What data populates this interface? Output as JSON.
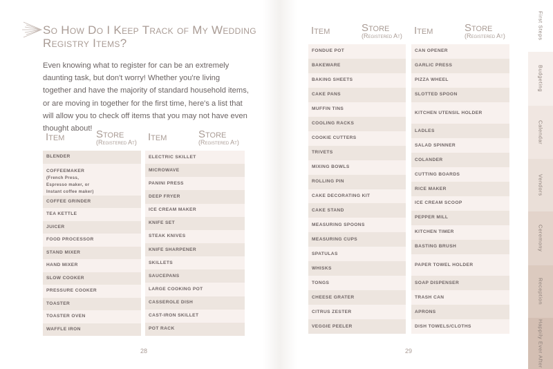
{
  "left_page": {
    "title": "So How Do I Keep Track of My Wedding Registry Items?",
    "intro": "Even knowing what to register for can be an extremely daunting task, but don't worry! Whether you're living together and have the majority of standard household items, or are moving in together for the first time, here's a list that will allow you to check off items that you may not have even thought about!",
    "page_number": "28"
  },
  "right_page": {
    "page_number": "29"
  },
  "table_header": {
    "item": "Item",
    "store": "Store",
    "store_sub": "(Registered At)"
  },
  "lists": [
    {
      "first_shade": "a",
      "items": [
        {
          "t": "Blender"
        },
        {
          "t": "Coffeemaker",
          "n": " (French Press, Espresso maker, or Instant coffee maker)",
          "h": 2.1
        },
        {
          "t": "Coffee grinder"
        },
        {
          "t": "Tea kettle"
        },
        {
          "t": "Juicer"
        },
        {
          "t": "Food processor"
        },
        {
          "t": "Stand mixer"
        },
        {
          "t": "Hand mixer"
        },
        {
          "t": "Slow cooker"
        },
        {
          "t": "Pressure cooker"
        },
        {
          "t": "Toaster"
        },
        {
          "t": "Toaster oven"
        },
        {
          "t": "Waffle iron"
        }
      ]
    },
    {
      "first_shade": "b",
      "items": [
        {
          "t": "Electric skillet"
        },
        {
          "t": "Microwave"
        },
        {
          "t": "Panini press"
        },
        {
          "t": "Deep fryer"
        },
        {
          "t": "Ice cream maker"
        },
        {
          "t": "Knife set"
        },
        {
          "t": "Steak knives"
        },
        {
          "t": "Knife sharpener"
        },
        {
          "t": "Skillets"
        },
        {
          "t": "Saucepans"
        },
        {
          "t": "Large cooking pot"
        },
        {
          "t": "Casserole dish"
        },
        {
          "t": "Cast-iron skillet"
        },
        {
          "t": "Pot rack"
        }
      ]
    },
    {
      "first_shade": "b",
      "items": [
        {
          "t": "Fondue pot"
        },
        {
          "t": "Bakeware"
        },
        {
          "t": "Baking sheets"
        },
        {
          "t": "Cake pans"
        },
        {
          "t": "Muffin tins"
        },
        {
          "t": "Cooling racks"
        },
        {
          "t": "Cookie cutters"
        },
        {
          "t": "Trivets"
        },
        {
          "t": "Mixing bowls"
        },
        {
          "t": "Rolling pin"
        },
        {
          "t": "Cake decorating kit"
        },
        {
          "t": "Cake stand"
        },
        {
          "t": "Measuring spoons"
        },
        {
          "t": "Measuring cups"
        },
        {
          "t": "Spatulas"
        },
        {
          "t": "Whisks"
        },
        {
          "t": "Tongs"
        },
        {
          "t": "Cheese grater"
        },
        {
          "t": "Citrus zester"
        },
        {
          "t": "Veggie peeler"
        }
      ]
    },
    {
      "first_shade": "b",
      "items": [
        {
          "t": "Can opener"
        },
        {
          "t": "Garlic press"
        },
        {
          "t": "Pizza wheel"
        },
        {
          "t": "Slotted spoon"
        },
        {
          "t": "Kitchen utensil holder",
          "h": 1.5
        },
        {
          "t": "Ladles"
        },
        {
          "t": "Salad spinner"
        },
        {
          "t": "Colander"
        },
        {
          "t": "Cutting boards"
        },
        {
          "t": "Rice maker"
        },
        {
          "t": "Ice cream scoop"
        },
        {
          "t": "Pepper mill"
        },
        {
          "t": "Kitchen timer"
        },
        {
          "t": "Basting brush"
        },
        {
          "t": "Paper towel holder",
          "h": 1.5
        },
        {
          "t": "Soap dispenser"
        },
        {
          "t": "Trash can"
        },
        {
          "t": "Aprons"
        },
        {
          "t": "Dish towels/cloths"
        }
      ]
    }
  ],
  "tabs": [
    {
      "label": "First Steps",
      "color": "#ffffff"
    },
    {
      "label": "Budgeting",
      "color": "#f6efec"
    },
    {
      "label": "Calendar",
      "color": "#f0e6e1"
    },
    {
      "label": "Vendors",
      "color": "#eadfd8"
    },
    {
      "label": "Ceremony",
      "color": "#e3d4cb"
    },
    {
      "label": "Reception",
      "color": "#dccabf"
    },
    {
      "label": "Happily Ever After",
      "color": "#d4bfb3"
    }
  ]
}
